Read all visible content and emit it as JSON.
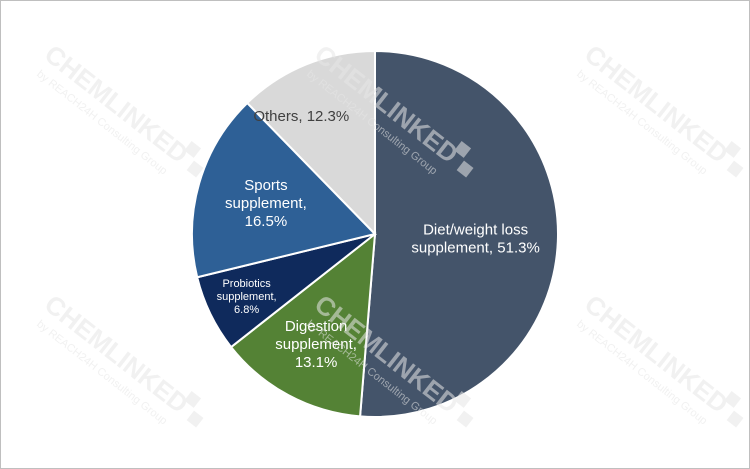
{
  "watermark": {
    "brand": "CHEMLINKED",
    "tagline": "by REACH24H Consulting Group",
    "color": "#e6e6e6"
  },
  "chart_data": {
    "type": "pie",
    "title": "",
    "start_angle_deg": 0,
    "direction": "clockwise",
    "slices": [
      {
        "label": "Diet/weight loss supplement",
        "value": 51.3,
        "display": [
          "Diet/weight loss",
          "supplement, 51.3%"
        ],
        "color": "#44546a",
        "text_color": "#ffffff"
      },
      {
        "label": "Digestion supplement",
        "value": 13.1,
        "display": [
          "Digestion",
          "supplement,",
          "13.1%"
        ],
        "color": "#548235",
        "text_color": "#ffffff"
      },
      {
        "label": "Probiotics supplement",
        "value": 6.8,
        "display": [
          "Probiotics",
          "supplement,",
          "6.8%"
        ],
        "color": "#0f2a5c",
        "text_color": "#ffffff"
      },
      {
        "label": "Sports supplement",
        "value": 16.5,
        "display": [
          "Sports",
          "supplement,",
          "16.5%"
        ],
        "color": "#2e6096",
        "text_color": "#ffffff"
      },
      {
        "label": "Others",
        "value": 12.3,
        "display": [
          "Others, 12.3%"
        ],
        "color": "#d9d9d9",
        "text_color": "#404040"
      }
    ]
  }
}
